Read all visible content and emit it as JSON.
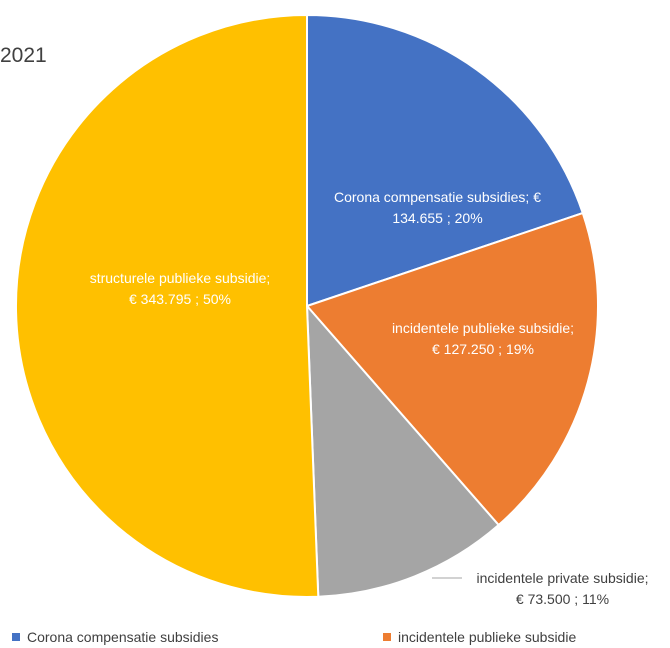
{
  "chart_data": {
    "type": "pie",
    "title": "2021",
    "slices": [
      {
        "name": "Corona compensatie subsidies",
        "value": 134655,
        "percent": 20,
        "label_line1": "Corona compensatie subsidies;  €",
        "label_line2": "134.655 ; 20%",
        "color": "#4472C4"
      },
      {
        "name": "incidentele publieke subsidie",
        "value": 127250,
        "percent": 19,
        "label_line1": "incidentele publieke subsidie;",
        "label_line2": "€ 127.250 ; 19%",
        "color": "#ED7D31"
      },
      {
        "name": "incidentele private subsidie",
        "value": 73500,
        "percent": 11,
        "label_line1": "incidentele private subsidie;",
        "label_line2": "€ 73.500 ; 11%",
        "color": "#A5A5A5"
      },
      {
        "name": "structurele publieke subsidie",
        "value": 343795,
        "percent": 50,
        "label_line1": "structurele publieke subsidie;",
        "label_line2": "€ 343.795 ; 50%",
        "color": "#FFC000"
      }
    ],
    "legend": [
      "Corona compensatie subsidies",
      "incidentele publieke subsidie"
    ],
    "legend_placement": "bottom"
  }
}
